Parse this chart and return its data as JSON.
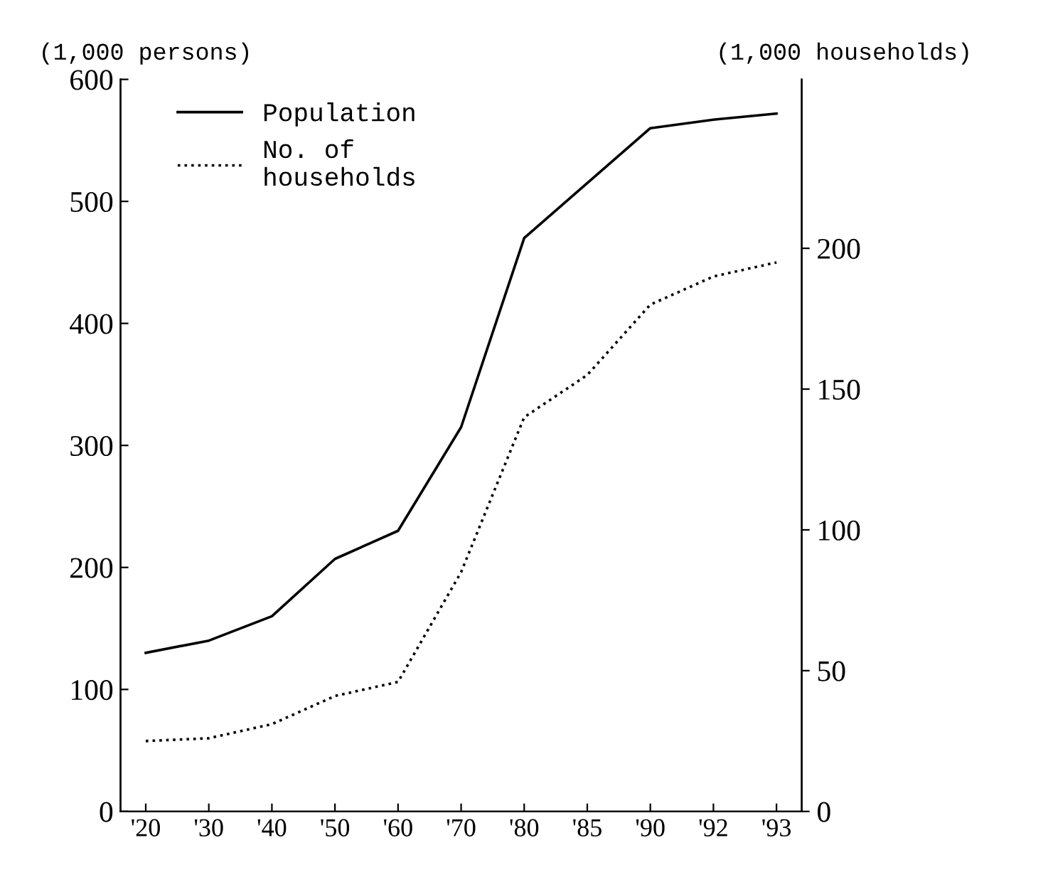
{
  "chart_data": {
    "type": "line",
    "ylabel": "(1,000 persons)",
    "y2label": "(1,000 households)",
    "categories": [
      "'20",
      "'30",
      "'40",
      "'50",
      "'60",
      "'70",
      "'80",
      "'85",
      "'90",
      "'92",
      "'93"
    ],
    "series": [
      {
        "name": "Population",
        "color": "#000000",
        "line_style": "solid",
        "values": [
          130,
          140,
          160,
          207,
          230,
          315,
          470,
          515,
          560,
          567,
          572
        ]
      },
      {
        "name": "No. of\nhouseholds",
        "color": "#000000",
        "line_style": "dotted",
        "axis": "y2",
        "values": [
          25,
          26,
          31,
          41,
          46,
          85,
          140,
          155,
          180,
          190,
          195
        ]
      }
    ],
    "ylim": [
      0,
      600
    ],
    "yticks": [
      0,
      100,
      200,
      300,
      400,
      500,
      600
    ],
    "y2lim": [
      0,
      260
    ],
    "y2ticks": [
      0,
      50,
      100,
      150,
      200
    ],
    "legend": "top left",
    "grid": false,
    "marker": "none"
  }
}
